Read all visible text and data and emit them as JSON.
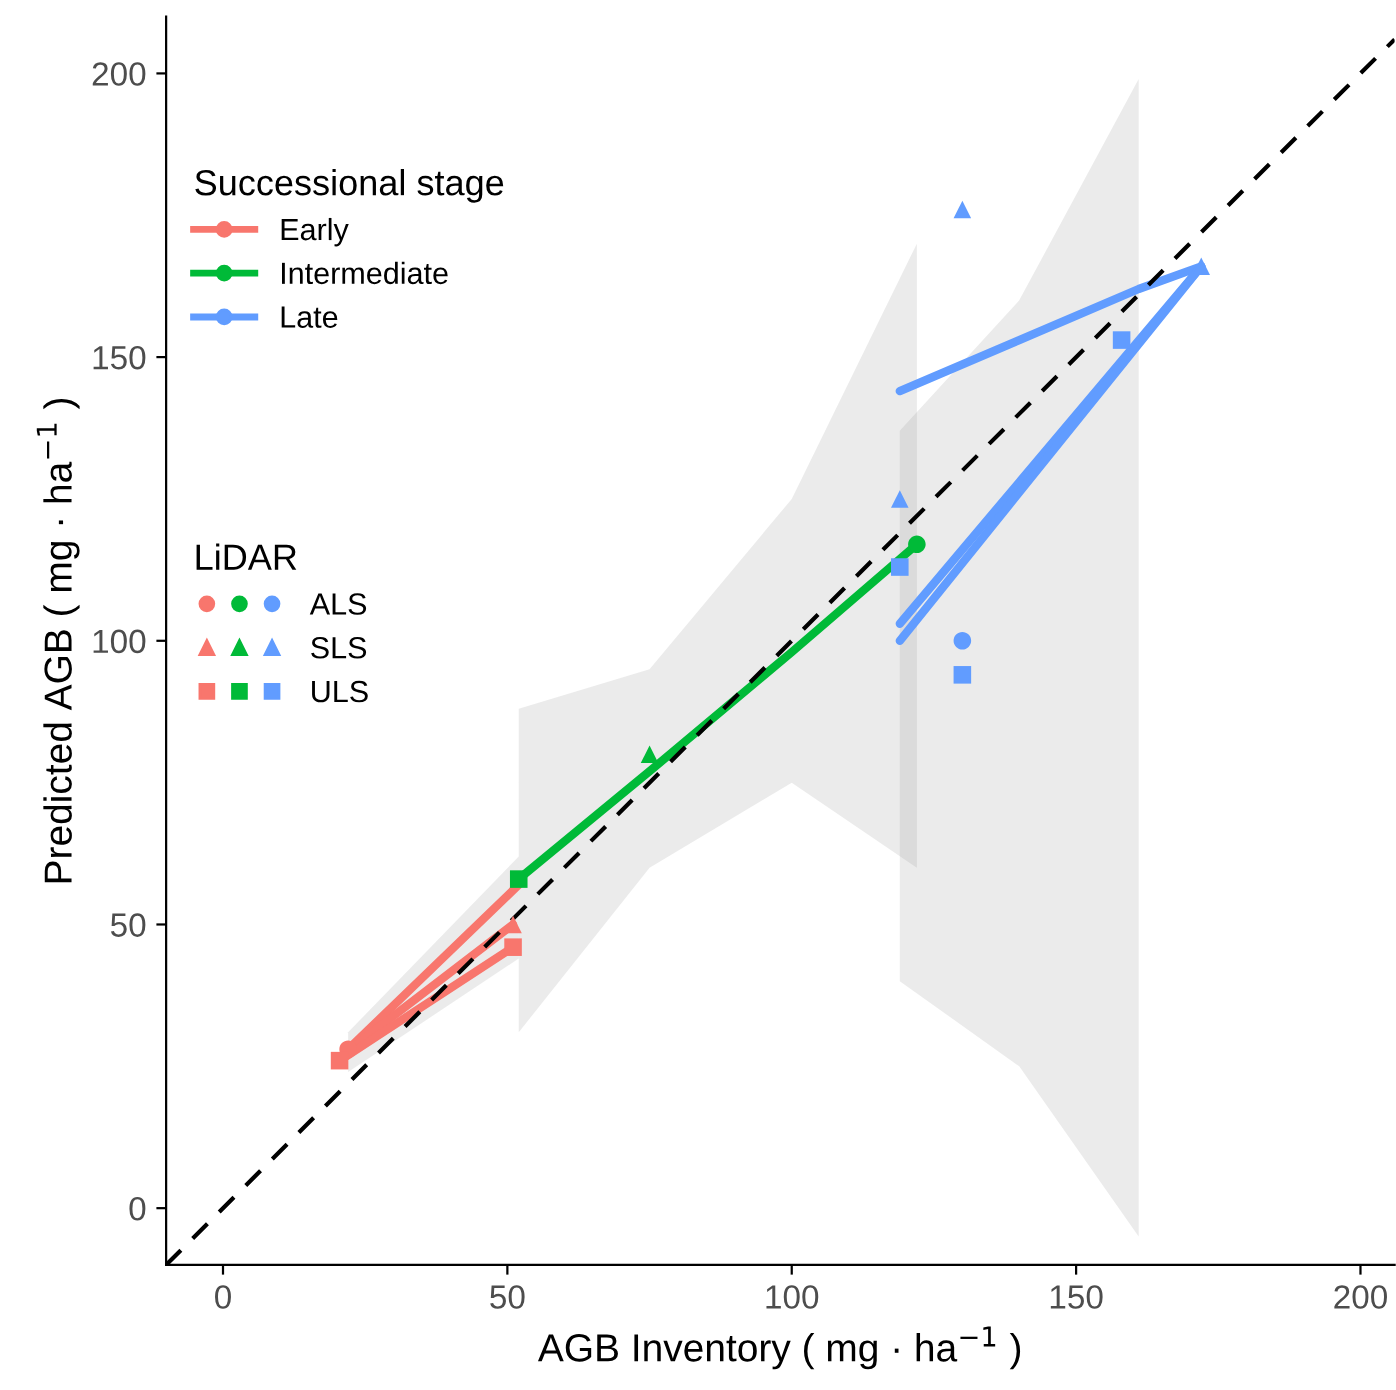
{
  "chart_data": {
    "type": "scatter",
    "xlabel": "AGB Inventory ( mg · ha$^{−1}$ )",
    "ylabel": "Predicted AGB ( mg · ha$^{−1}$ )",
    "legend_title": "Successional stage",
    "annotations": [
      "LiDAR"
    ],
    "xlim": [
      -10,
      206
    ],
    "ylim": [
      -10,
      210
    ],
    "xticks": [
      0,
      50,
      100,
      150,
      200
    ],
    "yticks": [
      0,
      50,
      100,
      150,
      200
    ],
    "grid": false,
    "legend": "top left",
    "series": [
      {
        "type": "line",
        "x": [
          -10,
          206
        ],
        "values": [
          -10,
          206
        ],
        "color": "#000000",
        "line_style": "dashed"
      },
      {
        "type": "line",
        "name": "Early",
        "color": "#f8766d",
        "x": [
          22,
          52
        ],
        "values": [
          28,
          57
        ],
        "lower": [
          24,
          44
        ],
        "upper": [
          31,
          62
        ]
      },
      {
        "type": "line",
        "color": "#f8766d",
        "x": [
          21,
          51
        ],
        "values": [
          27,
          50
        ]
      },
      {
        "type": "line",
        "color": "#f8766d",
        "x": [
          20.5,
          51
        ],
        "values": [
          26,
          46
        ]
      },
      {
        "type": "line",
        "name": "Intermediate",
        "color": "#00ba38",
        "x": [
          52,
          75,
          100,
          122
        ],
        "values": [
          58,
          77,
          98,
          117
        ],
        "lower": [
          31,
          60,
          75,
          60
        ],
        "upper": [
          88,
          95,
          125,
          170
        ]
      },
      {
        "type": "line",
        "name": "Late",
        "color": "#619cff",
        "x": [
          119,
          140,
          161,
          172
        ],
        "values": [
          144,
          153,
          162,
          166
        ],
        "lower": [
          40,
          25,
          -5,
          null
        ],
        "upper": [
          137,
          160,
          199,
          null
        ]
      },
      {
        "type": "line",
        "color": "#619cff",
        "x": [
          119,
          172
        ],
        "values": [
          103,
          166
        ]
      },
      {
        "type": "line",
        "color": "#619cff",
        "x": [
          119,
          172
        ],
        "values": [
          100,
          166
        ]
      },
      {
        "type": "scatter",
        "name": "ALS",
        "marker": "circle",
        "x": [
          22,
          122,
          130
        ],
        "values": [
          28,
          117,
          100
        ],
        "colors": [
          "#f8766d",
          "#00ba38",
          "#619cff"
        ]
      },
      {
        "type": "scatter",
        "name": "SLS",
        "marker": "triangle",
        "x": [
          51,
          75,
          119,
          130,
          172
        ],
        "values": [
          50,
          80,
          125,
          176,
          166
        ],
        "colors": [
          "#f8766d",
          "#00ba38",
          "#619cff",
          "#619cff",
          "#619cff"
        ]
      },
      {
        "type": "scatter",
        "name": "ULS",
        "marker": "square",
        "x": [
          20.5,
          51,
          52,
          119,
          130,
          158
        ],
        "values": [
          26,
          46,
          58,
          113,
          94,
          153
        ],
        "colors": [
          "#f8766d",
          "#f8766d",
          "#00ba38",
          "#619cff",
          "#619cff",
          "#619cff"
        ]
      }
    ]
  }
}
